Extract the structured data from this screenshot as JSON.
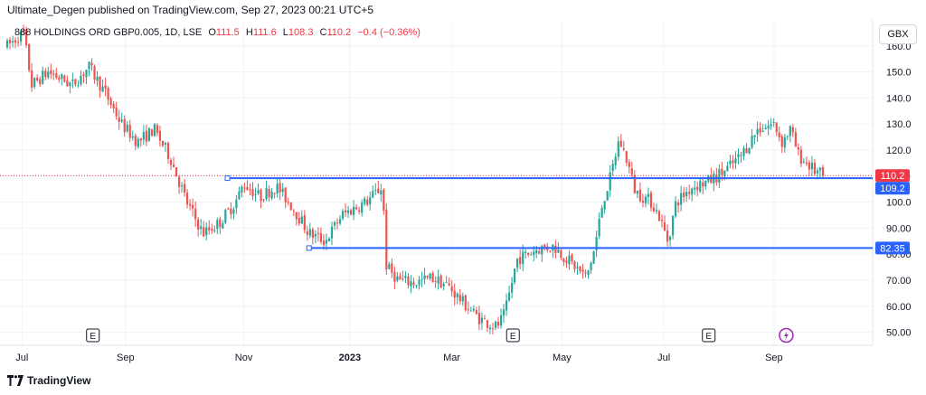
{
  "publisher_line": "Ultimate_Degen published on TradingView.com, Sep 27, 2023 00:21 UTC+5",
  "legend": {
    "symbol": "888 HOLDINGS ORD GBP0.005, 1D, LSE",
    "open_label": "O",
    "open": "111.5",
    "high_label": "H",
    "high": "111.6",
    "low_label": "L",
    "low": "108.3",
    "close_label": "C",
    "close": "110.2",
    "change": "−0.4 (−0.36%)"
  },
  "currency": "GBX",
  "footer": {
    "logo_text": "TradingView"
  },
  "colors": {
    "up": "#26A69A",
    "down": "#EF5350",
    "line": "#2962FF",
    "last": "#F23645",
    "event": "#9C27B0"
  },
  "chart_data": {
    "type": "candlestick",
    "y_axis": {
      "min": 45,
      "max": 170,
      "ticks": [
        "160.0",
        "150.0",
        "140.0",
        "130.0",
        "120.0",
        "110.0",
        "100.0",
        "90.00",
        "80.00",
        "70.00",
        "60.00",
        "50.00"
      ]
    },
    "x_axis": {
      "labels": [
        "Jul",
        "Sep",
        "Nov",
        "2023",
        "Mar",
        "May",
        "Jul",
        "Sep"
      ]
    },
    "price_labels": [
      {
        "text": "110.2",
        "value": 110.2,
        "color": "#F23645"
      },
      {
        "text": "109.2",
        "value": 109.2,
        "color": "#2962FF"
      },
      {
        "text": "82.35",
        "value": 82.35,
        "color": "#2962FF"
      }
    ],
    "horizontal_lines": [
      {
        "value": 109.2,
        "from": 0.27,
        "color": "#2962FF"
      },
      {
        "value": 82.35,
        "from": 0.37,
        "color": "#2962FF"
      }
    ],
    "last_price": 110.2,
    "events": [
      {
        "label": "E",
        "at": 0.105
      },
      {
        "label": "E",
        "at": 0.62
      },
      {
        "label": "E",
        "at": 0.86
      }
    ],
    "dividend_marker_at": 0.955,
    "path": [
      [
        0,
        160
      ],
      [
        0.02,
        165
      ],
      [
        0.03,
        145
      ],
      [
        0.05,
        150
      ],
      [
        0.08,
        145
      ],
      [
        0.1,
        152
      ],
      [
        0.12,
        142
      ],
      [
        0.14,
        130
      ],
      [
        0.16,
        123
      ],
      [
        0.18,
        128
      ],
      [
        0.2,
        117
      ],
      [
        0.22,
        100
      ],
      [
        0.24,
        88
      ],
      [
        0.26,
        92
      ],
      [
        0.28,
        100
      ],
      [
        0.29,
        107
      ],
      [
        0.31,
        102
      ],
      [
        0.33,
        106
      ],
      [
        0.35,
        98
      ],
      [
        0.37,
        88
      ],
      [
        0.39,
        85
      ],
      [
        0.41,
        95
      ],
      [
        0.44,
        100
      ],
      [
        0.46,
        106
      ],
      [
        0.465,
        75
      ],
      [
        0.48,
        70
      ],
      [
        0.5,
        69
      ],
      [
        0.52,
        71
      ],
      [
        0.54,
        68
      ],
      [
        0.56,
        61
      ],
      [
        0.58,
        55
      ],
      [
        0.6,
        52
      ],
      [
        0.61,
        57
      ],
      [
        0.625,
        78
      ],
      [
        0.65,
        82
      ],
      [
        0.67,
        83
      ],
      [
        0.69,
        77
      ],
      [
        0.71,
        71
      ],
      [
        0.72,
        82
      ],
      [
        0.73,
        100
      ],
      [
        0.74,
        110
      ],
      [
        0.75,
        124
      ],
      [
        0.76,
        116
      ],
      [
        0.77,
        104
      ],
      [
        0.79,
        100
      ],
      [
        0.8,
        94
      ],
      [
        0.81,
        85
      ],
      [
        0.82,
        100
      ],
      [
        0.84,
        106
      ],
      [
        0.86,
        108
      ],
      [
        0.88,
        112
      ],
      [
        0.9,
        118
      ],
      [
        0.92,
        128
      ],
      [
        0.94,
        130
      ],
      [
        0.95,
        123
      ],
      [
        0.96,
        128
      ],
      [
        0.97,
        118
      ],
      [
        0.98,
        115
      ],
      [
        0.99,
        112
      ],
      [
        1.0,
        110.2
      ]
    ]
  }
}
